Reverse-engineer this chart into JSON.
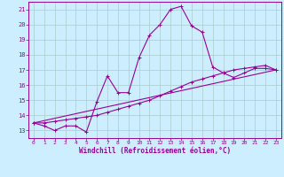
{
  "xlabel": "Windchill (Refroidissement éolien,°C)",
  "bg_color": "#cceeff",
  "line_color": "#990099",
  "grid_color": "#aacccc",
  "xlim": [
    -0.5,
    23.5
  ],
  "ylim": [
    12.5,
    21.5
  ],
  "yticks": [
    13,
    14,
    15,
    16,
    17,
    18,
    19,
    20,
    21
  ],
  "xticks": [
    0,
    1,
    2,
    3,
    4,
    5,
    6,
    7,
    8,
    9,
    10,
    11,
    12,
    13,
    14,
    15,
    16,
    17,
    18,
    19,
    20,
    21,
    22,
    23
  ],
  "curve1_x": [
    0,
    1,
    2,
    3,
    4,
    5,
    6,
    7,
    8,
    9,
    10,
    11,
    12,
    13,
    14,
    15,
    16,
    17,
    18,
    19,
    20,
    21,
    22,
    23
  ],
  "curve1_y": [
    13.5,
    13.3,
    13.0,
    13.3,
    13.3,
    12.9,
    14.9,
    16.6,
    15.5,
    15.5,
    17.8,
    19.3,
    20.0,
    21.0,
    21.2,
    19.9,
    19.5,
    17.2,
    16.8,
    16.5,
    16.8,
    17.1,
    17.1,
    17.0
  ],
  "curve2_x": [
    0,
    23
  ],
  "curve2_y": [
    13.5,
    17.0
  ],
  "curve3_x": [
    0,
    1,
    2,
    3,
    4,
    5,
    6,
    7,
    8,
    9,
    10,
    11,
    12,
    13,
    14,
    15,
    16,
    17,
    18,
    19,
    20,
    21,
    22,
    23
  ],
  "curve3_y": [
    13.5,
    13.5,
    13.6,
    13.7,
    13.8,
    13.9,
    14.0,
    14.2,
    14.4,
    14.6,
    14.8,
    15.0,
    15.3,
    15.6,
    15.9,
    16.2,
    16.4,
    16.6,
    16.8,
    17.0,
    17.1,
    17.2,
    17.3,
    17.0
  ]
}
